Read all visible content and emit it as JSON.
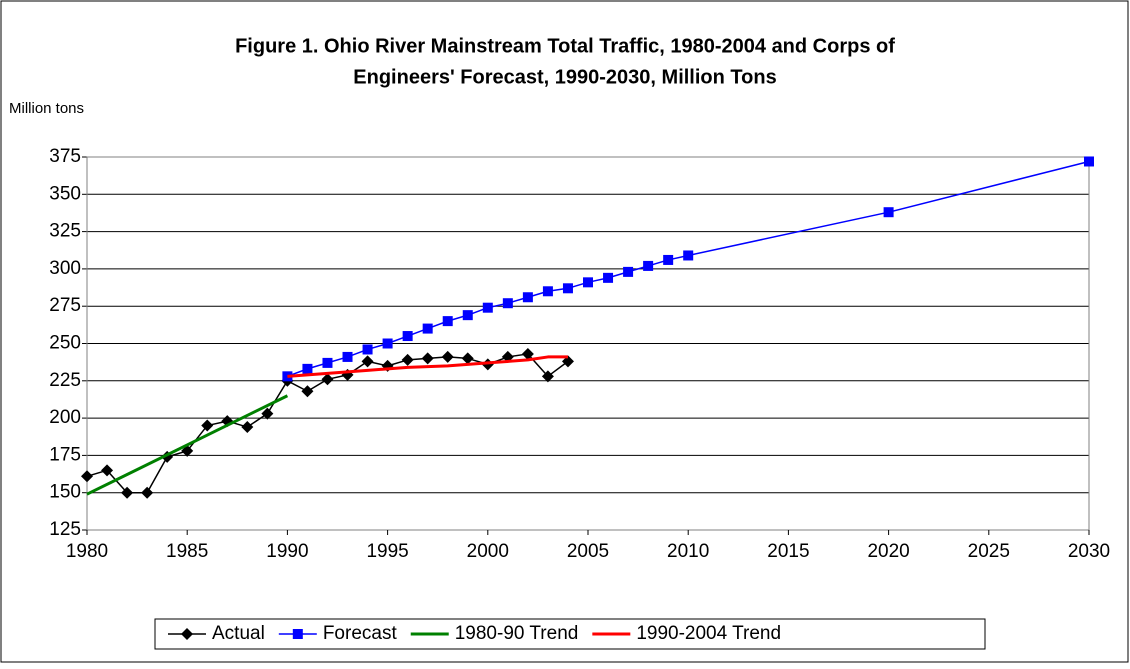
{
  "chart_data": {
    "type": "line",
    "title": [
      "Figure 1.  Ohio River Mainstream Total Traffic, 1980-2004 and Corps of",
      "Engineers' Forecast, 1990-2030,  Million Tons"
    ],
    "y_label": "Million tons",
    "xlim": [
      1980,
      2030
    ],
    "xticks": [
      1980,
      1985,
      1990,
      1995,
      2000,
      2005,
      2010,
      2015,
      2020,
      2025,
      2030
    ],
    "ylim": [
      125,
      375
    ],
    "yticks": [
      125,
      150,
      175,
      200,
      225,
      250,
      275,
      300,
      325,
      350,
      375
    ],
    "grid": true,
    "legend": "bottom",
    "series": [
      {
        "name": "Actual",
        "color": "#000000",
        "marker": "diamond",
        "x": [
          1980,
          1981,
          1982,
          1983,
          1984,
          1985,
          1986,
          1987,
          1988,
          1989,
          1990,
          1991,
          1992,
          1993,
          1994,
          1995,
          1996,
          1997,
          1998,
          1999,
          2000,
          2001,
          2002,
          2003,
          2004
        ],
        "values": [
          161,
          165,
          150,
          150,
          174,
          178,
          195,
          198,
          194,
          203,
          225,
          218,
          226,
          229,
          238,
          235,
          239,
          240,
          241,
          240,
          236,
          241,
          243,
          228,
          238
        ]
      },
      {
        "name": "Forecast",
        "color": "#0000ff",
        "marker": "square",
        "x": [
          1990,
          1991,
          1992,
          1993,
          1994,
          1995,
          1996,
          1997,
          1998,
          1999,
          2000,
          2001,
          2002,
          2003,
          2004,
          2005,
          2006,
          2007,
          2008,
          2009,
          2010,
          2020,
          2030
        ],
        "values": [
          228,
          233,
          237,
          241,
          246,
          250,
          255,
          260,
          265,
          269,
          274,
          277,
          281,
          285,
          287,
          291,
          294,
          298,
          302,
          306,
          309,
          338,
          372
        ]
      },
      {
        "name": "1980-90 Trend",
        "color": "#008000",
        "marker": "none",
        "x": [
          1980,
          1990
        ],
        "values": [
          149,
          215
        ]
      },
      {
        "name": "1990-2004 Trend",
        "color": "#ff0000",
        "marker": "none",
        "x": [
          1990,
          1992,
          1994,
          1996,
          1998,
          2000,
          2002,
          2003,
          2004
        ],
        "values": [
          228,
          230,
          232,
          234,
          235,
          237,
          239,
          241,
          241
        ]
      }
    ]
  }
}
